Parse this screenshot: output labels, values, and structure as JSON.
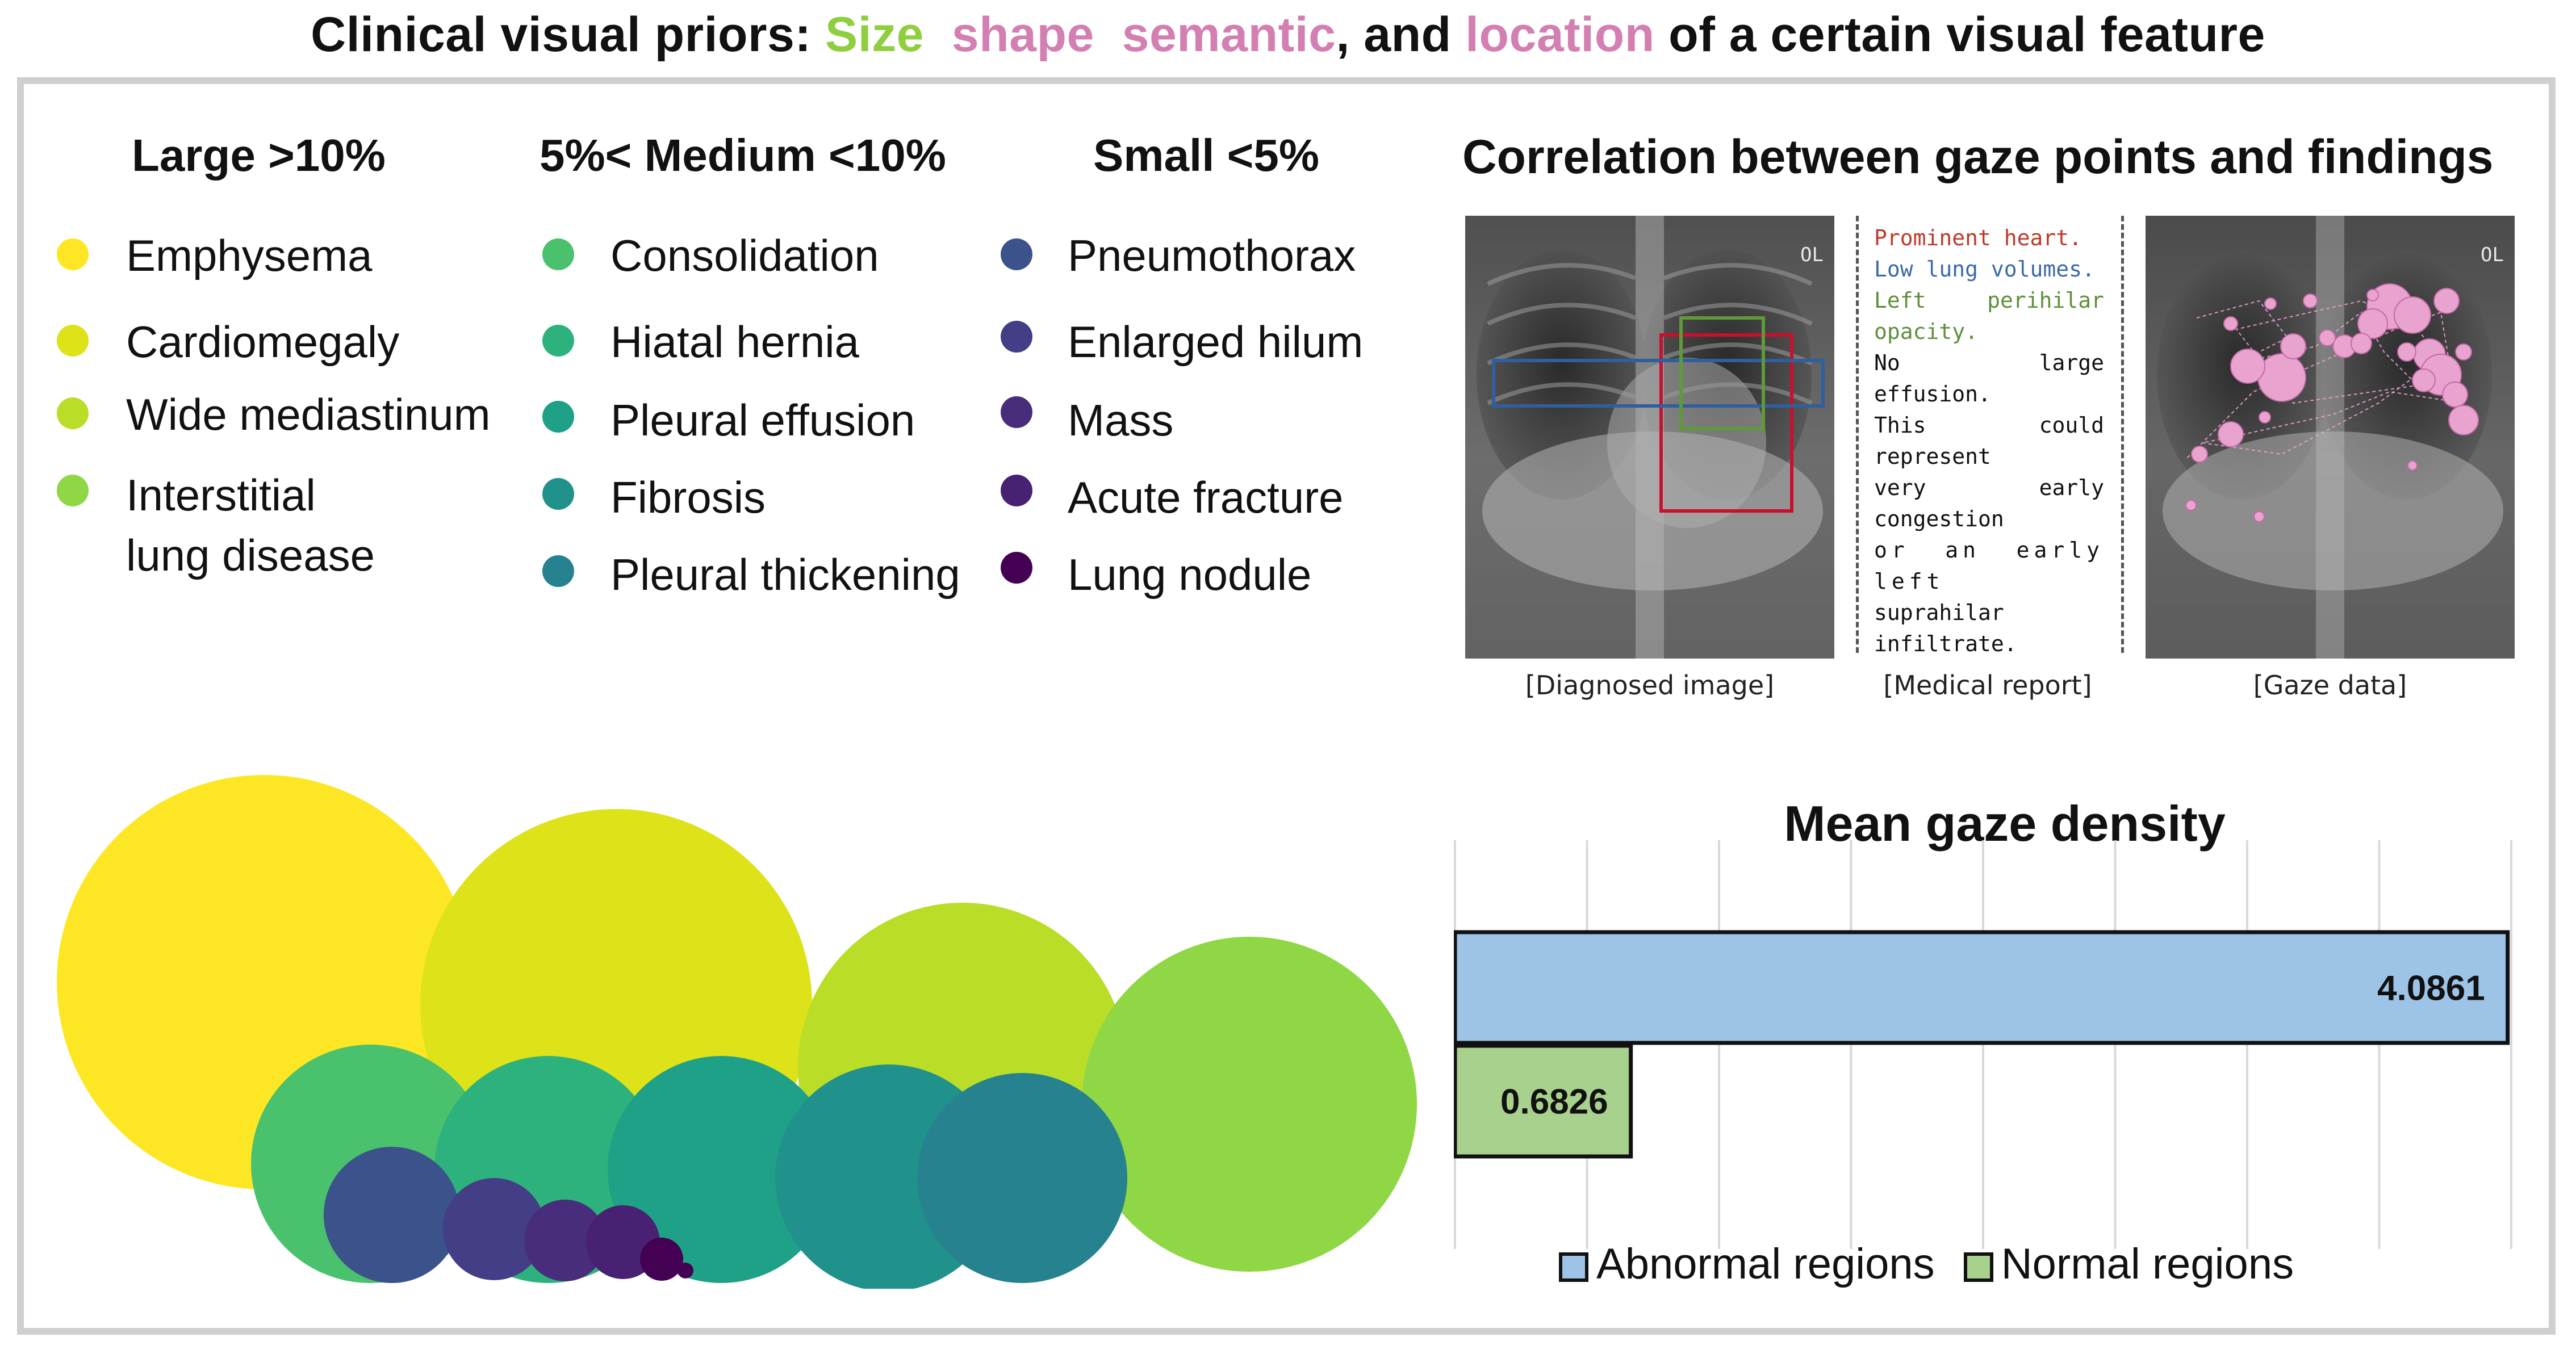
{
  "title": {
    "prefix": "Clinical visual priors: ",
    "size": "Size",
    "shape": "shape",
    "semantic": "semantic",
    "comma_and": ", and ",
    "location": "location",
    "suffix": " of a certain visual feature",
    "colors": {
      "size": "#8fce3f",
      "pink": "#d37fb2"
    }
  },
  "categories": [
    {
      "heading": "Large >10%",
      "items": [
        {
          "label": "Emphysema",
          "color": "#fde725"
        },
        {
          "label": "Cardiomegaly",
          "color": "#dde318"
        },
        {
          "label": "Wide mediastinum",
          "color": "#bade28"
        },
        {
          "label": "Interstitial",
          "label2": "lung disease",
          "color": "#8fd744"
        }
      ]
    },
    {
      "heading": "5%< Medium <10%",
      "items": [
        {
          "label": "Consolidation",
          "color": "#4ac16d"
        },
        {
          "label": "Hiatal hernia",
          "color": "#2db27d"
        },
        {
          "label": "Pleural effusion",
          "color": "#1fa187"
        },
        {
          "label": "Fibrosis",
          "color": "#21918c"
        },
        {
          "label": "Pleural thickening",
          "color": "#26828e"
        }
      ]
    },
    {
      "heading": "Small <5%",
      "items": [
        {
          "label": "Pneumothorax",
          "color": "#3b528b"
        },
        {
          "label": "Enlarged hilum",
          "color": "#433e85"
        },
        {
          "label": "Mass",
          "color": "#472d7b"
        },
        {
          "label": "Acute fracture",
          "color": "#482173"
        },
        {
          "label": "Lung nodule",
          "color": "#440154"
        }
      ]
    }
  ],
  "correlation": {
    "title": "Correlation between gaze points and findings",
    "captions": {
      "image": "[Diagnosed image]",
      "report": "[Medical report]",
      "gaze": "[Gaze data]"
    },
    "report_lines": [
      {
        "text": "Prominent heart.",
        "color": "#c0392b"
      },
      {
        "text": "Low lung volumes.",
        "color": "#3a6aa8"
      },
      {
        "text": "Left perihilar opacity.",
        "color": "#5f8f3a"
      },
      {
        "text": "No large effusion.",
        "color": "#111111"
      },
      {
        "text": "This could represent",
        "color": "#111111"
      },
      {
        "text": "very early congestion",
        "color": "#111111"
      },
      {
        "text": "or an early left",
        "color": "#111111"
      },
      {
        "text": "suprahilar infiltrate.",
        "color": "#111111"
      }
    ],
    "box_colors": {
      "heart": "#c8102e",
      "lungs": "#2f5f9e",
      "opacity": "#5e9a3a"
    },
    "gaze_color": "#e9a3cf"
  },
  "gaze_density": {
    "title": "Mean gaze density",
    "legend": [
      {
        "label": "Abnormal regions",
        "color": "#9dc3e6"
      },
      {
        "label": "Normal regions",
        "color": "#a9d18e"
      }
    ]
  },
  "chart_data": {
    "type": "bar",
    "orientation": "horizontal",
    "title": "Mean gaze density",
    "categories": [
      "Abnormal regions",
      "Normal regions"
    ],
    "values": [
      4.0861,
      0.6826
    ],
    "value_labels": [
      "4.0861",
      "0.6826"
    ],
    "colors": [
      "#9dc3e6",
      "#a9d18e"
    ],
    "xlim": [
      0,
      4.1
    ],
    "grid": true,
    "legend_position": "bottom"
  }
}
